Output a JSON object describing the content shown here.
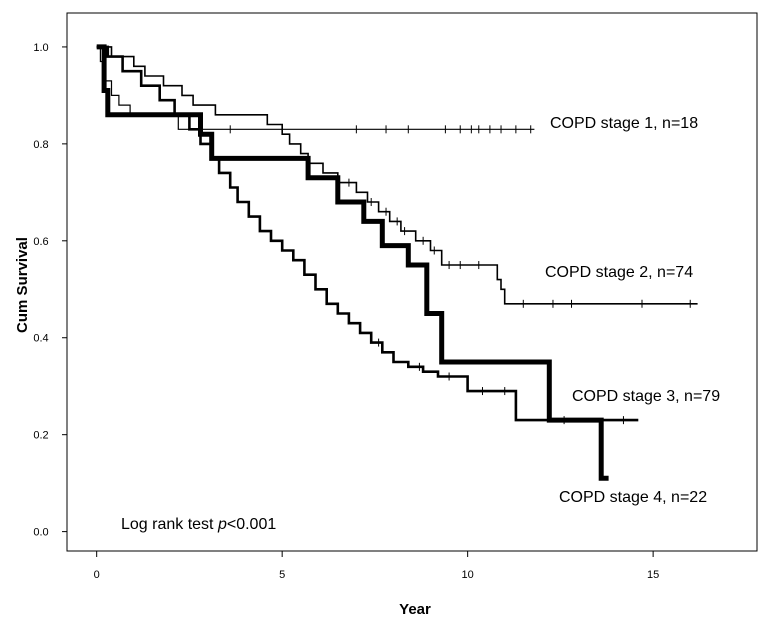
{
  "chart_data": {
    "type": "line",
    "subtype": "kaplan-meier step",
    "xlabel": "Year",
    "ylabel": "Cum Survival",
    "xlim": [
      -0.8,
      17.8
    ],
    "ylim": [
      -0.04,
      1.07
    ],
    "xticks": [
      "0",
      "5",
      "10",
      "15"
    ],
    "xtick_values": [
      0,
      5,
      10,
      15
    ],
    "yticks": [
      "0.0",
      "0.2",
      "0.4",
      "0.6",
      "0.8",
      "1.0"
    ],
    "ytick_values": [
      0,
      0.2,
      0.4,
      0.6,
      0.8,
      1.0
    ],
    "grid": false,
    "annotation": {
      "prefix": "Log rank test ",
      "italic": "p",
      "suffix": "<0.001"
    },
    "series": [
      {
        "name": "COPD stage 1, n=18",
        "x": [
          0,
          0.1,
          0.2,
          0.4,
          0.6,
          0.9,
          2.2,
          3.0,
          4.2
        ],
        "y": [
          1.0,
          0.97,
          0.93,
          0.9,
          0.88,
          0.86,
          0.83,
          0.83,
          0.83
        ],
        "end": 11.8,
        "censored": [
          3.6,
          7.0,
          7.8,
          8.4,
          9.4,
          9.8,
          10.1,
          10.3,
          10.6,
          10.9,
          11.3,
          11.7
        ]
      },
      {
        "name": "COPD stage 2, n=74",
        "x": [
          0,
          0.4,
          1.0,
          1.3,
          1.8,
          2.3,
          2.6,
          3.2,
          4.6,
          5.0,
          5.2,
          5.5,
          5.7,
          6.1,
          6.5,
          7.0,
          7.3,
          7.6,
          7.9,
          8.2,
          8.6,
          9.0,
          9.3,
          10.8,
          10.9,
          11.0
        ],
        "y": [
          1.0,
          0.98,
          0.96,
          0.94,
          0.92,
          0.9,
          0.88,
          0.86,
          0.84,
          0.82,
          0.8,
          0.78,
          0.76,
          0.74,
          0.72,
          0.7,
          0.68,
          0.66,
          0.64,
          0.62,
          0.6,
          0.58,
          0.55,
          0.52,
          0.5,
          0.47
        ],
        "end": 16.2,
        "censored": [
          6.8,
          7.4,
          7.8,
          8.1,
          8.3,
          8.8,
          9.1,
          9.5,
          9.8,
          10.3,
          11.5,
          12.3,
          12.8,
          14.7,
          16.0
        ]
      },
      {
        "name": "COPD stage 3, n=79",
        "x": [
          0,
          0.3,
          0.7,
          1.2,
          1.7,
          2.1,
          2.5,
          2.8,
          3.1,
          3.3,
          3.6,
          3.8,
          4.1,
          4.4,
          4.7,
          5.0,
          5.3,
          5.6,
          5.9,
          6.2,
          6.5,
          6.8,
          7.1,
          7.4,
          7.7,
          8.0,
          8.4,
          8.8,
          9.2,
          10.0,
          11.3
        ],
        "y": [
          1.0,
          0.98,
          0.95,
          0.92,
          0.89,
          0.86,
          0.83,
          0.8,
          0.77,
          0.74,
          0.71,
          0.68,
          0.65,
          0.62,
          0.6,
          0.58,
          0.56,
          0.53,
          0.5,
          0.47,
          0.45,
          0.43,
          0.41,
          0.39,
          0.37,
          0.35,
          0.34,
          0.33,
          0.32,
          0.29,
          0.23
        ],
        "end": 14.6,
        "censored": [
          7.6,
          8.7,
          9.5,
          10.4,
          11.0,
          12.6,
          14.2
        ]
      },
      {
        "name": "COPD stage 4, n=22",
        "x": [
          0,
          0.2,
          0.3,
          2.8,
          3.1,
          5.7,
          6.5,
          7.2,
          7.7,
          8.4,
          8.9,
          9.3,
          12.2,
          13.6
        ],
        "y": [
          1.0,
          0.91,
          0.86,
          0.82,
          0.77,
          0.73,
          0.68,
          0.64,
          0.59,
          0.55,
          0.45,
          0.35,
          0.23,
          0.11
        ],
        "end": 13.8,
        "censored": []
      }
    ]
  }
}
